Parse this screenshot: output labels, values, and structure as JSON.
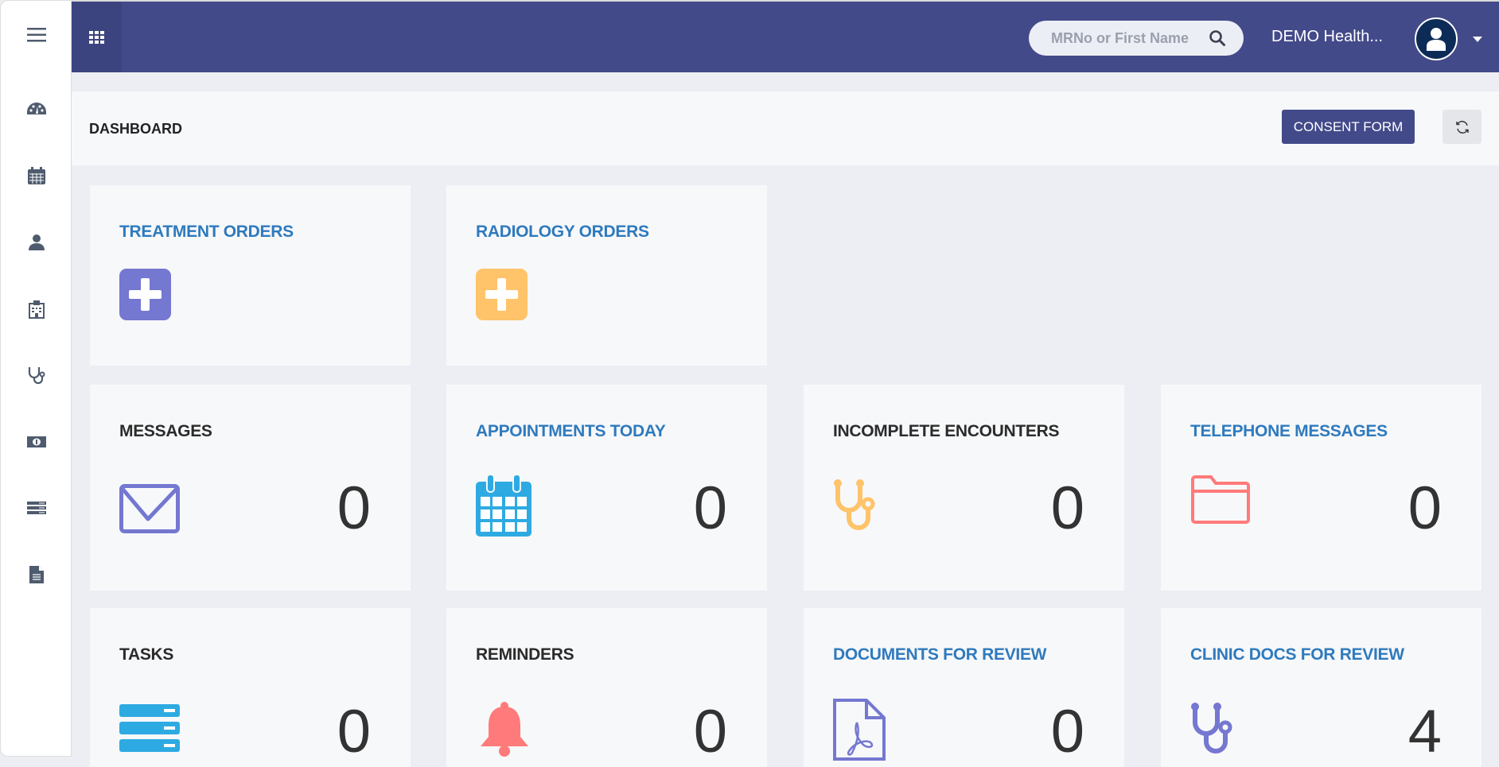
{
  "sidebar": {
    "items": [
      {
        "icon": "menu-icon"
      },
      {
        "icon": "dashboard-gauge-icon"
      },
      {
        "icon": "calendar-icon"
      },
      {
        "icon": "user-icon"
      },
      {
        "icon": "hospital-icon"
      },
      {
        "icon": "stethoscope-icon"
      },
      {
        "icon": "money-icon"
      },
      {
        "icon": "list-server-icon"
      },
      {
        "icon": "document-icon"
      }
    ]
  },
  "topbar": {
    "search_placeholder": "MRNo or First Name",
    "org_name": "DEMO Health...",
    "color": "#434a8a"
  },
  "header": {
    "title": "DASHBOARD",
    "consent_label": "CONSENT FORM"
  },
  "cards": {
    "treatment": {
      "title": "TREATMENT ORDERS",
      "color": "#7478d0"
    },
    "radiology": {
      "title": "RADIOLOGY ORDERS",
      "color": "#ffc36a"
    },
    "messages": {
      "title": "MESSAGES",
      "count": "0"
    },
    "appointments": {
      "title": "APPOINTMENTS TODAY",
      "count": "0"
    },
    "encounters": {
      "title": "INCOMPLETE ENCOUNTERS",
      "count": "0"
    },
    "telephone": {
      "title": "TELEPHONE MESSAGES",
      "count": "0"
    },
    "tasks": {
      "title": "TASKS",
      "count": "0"
    },
    "reminders": {
      "title": "REMINDERS",
      "count": "0"
    },
    "documents": {
      "title": "DOCUMENTS FOR REVIEW",
      "count": "0"
    },
    "clinic_docs": {
      "title": "CLINIC DOCS FOR REVIEW",
      "count": "4"
    }
  }
}
